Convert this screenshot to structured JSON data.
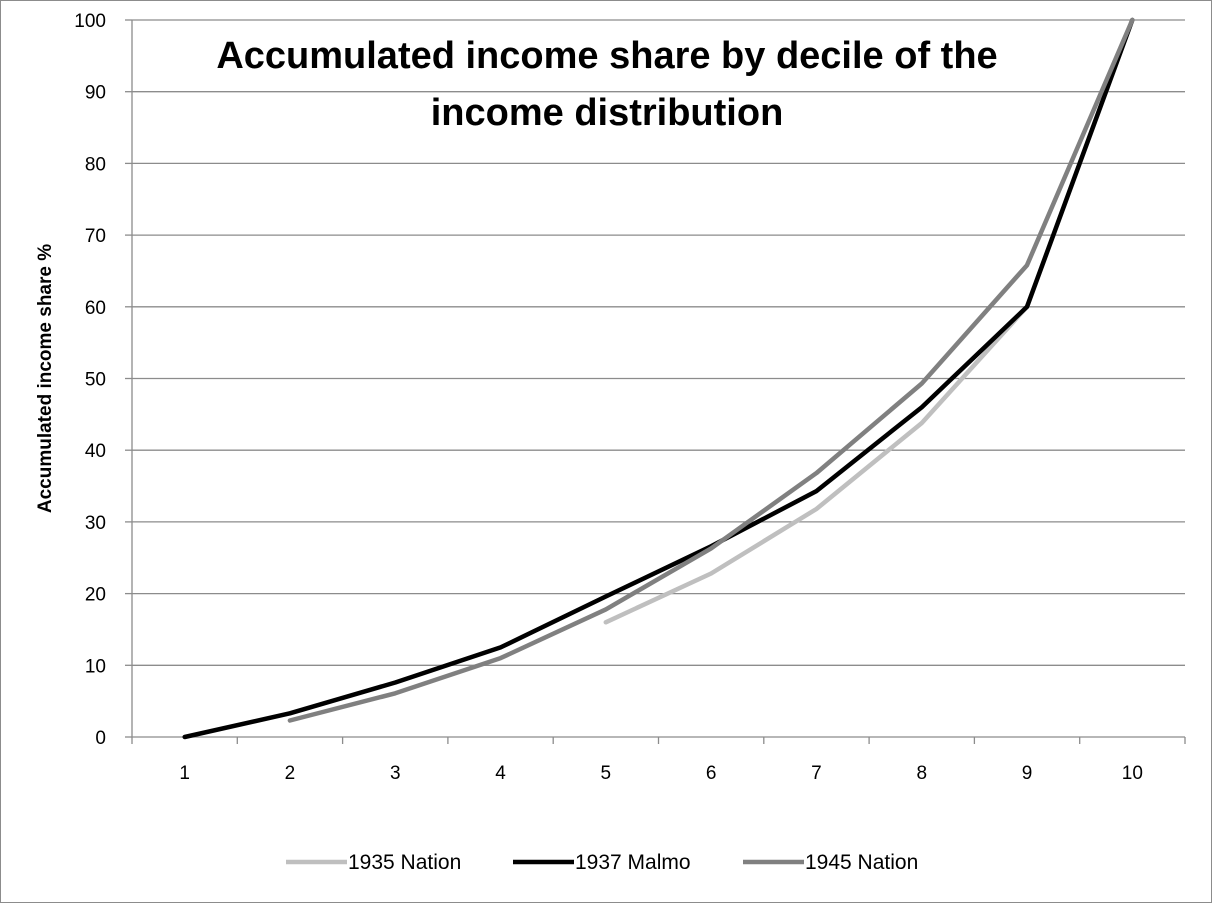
{
  "chart_data": {
    "type": "line",
    "title_lines": [
      "Accumulated income share by decile of the",
      "income distribution"
    ],
    "xlabel": "",
    "ylabel": "Accumulated income share %",
    "categories": [
      "1",
      "2",
      "3",
      "4",
      "5",
      "6",
      "7",
      "8",
      "9",
      "10"
    ],
    "ylim": [
      0,
      100
    ],
    "yticks": [
      "0",
      "10",
      "20",
      "30",
      "40",
      "50",
      "60",
      "70",
      "80",
      "90",
      "100"
    ],
    "grid": "horizontal",
    "legend_position": "bottom",
    "series": [
      {
        "name": "1935 Nation",
        "color": "#bfbfbf",
        "values": [
          null,
          null,
          null,
          null,
          16.0,
          22.8,
          31.8,
          43.8,
          60.0,
          100
        ]
      },
      {
        "name": "1937 Malmo",
        "color": "#000000",
        "values": [
          0.0,
          3.3,
          7.6,
          12.5,
          19.6,
          26.6,
          34.3,
          46.0,
          60.0,
          100
        ]
      },
      {
        "name": "1945 Nation",
        "color": "#808080",
        "values": [
          null,
          2.3,
          6.1,
          11.0,
          17.8,
          26.3,
          36.8,
          49.3,
          65.8,
          100
        ]
      }
    ]
  }
}
